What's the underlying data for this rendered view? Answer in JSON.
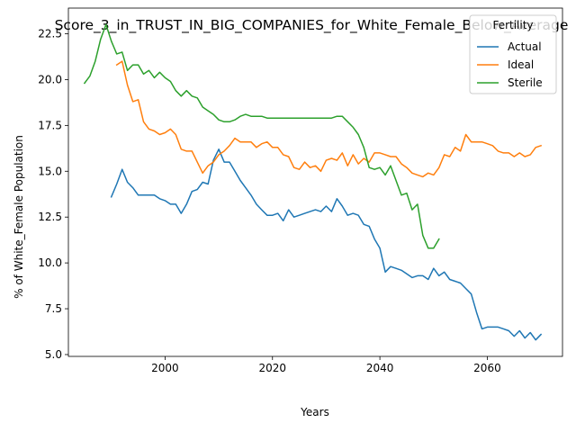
{
  "chart_data": {
    "type": "line",
    "title": "Score_3_in_TRUST_IN_BIG_COMPANIES_for_White_Female_Below_Average",
    "xlabel": "Years",
    "ylabel": "% of White_Female Population",
    "xlim": [
      1982,
      2074
    ],
    "ylim": [
      4.9,
      23.9
    ],
    "xticks": [
      2000,
      2020,
      2040,
      2060
    ],
    "yticks": [
      5.0,
      7.5,
      10.0,
      12.5,
      15.0,
      17.5,
      20.0,
      22.5
    ],
    "legend": {
      "title": "Fertility",
      "placement": "top-right"
    },
    "grid": false,
    "series": [
      {
        "name": "Actual",
        "color": "#1f77b4",
        "x": [
          1990,
          1991,
          1992,
          1993,
          1994,
          1995,
          1996,
          1997,
          1998,
          1999,
          2000,
          2001,
          2002,
          2003,
          2004,
          2005,
          2006,
          2007,
          2008,
          2009,
          2010,
          2011,
          2012,
          2013,
          2014,
          2015,
          2016,
          2017,
          2018,
          2019,
          2020,
          2021,
          2022,
          2023,
          2024,
          2025,
          2026,
          2027,
          2028,
          2029,
          2030,
          2031,
          2032,
          2033,
          2034,
          2035,
          2036,
          2037,
          2038,
          2039,
          2040,
          2041,
          2042,
          2043,
          2044,
          2045,
          2046,
          2047,
          2048,
          2049,
          2050,
          2051,
          2052,
          2053,
          2054,
          2055,
          2056,
          2057,
          2058,
          2059,
          2060,
          2061,
          2062,
          2063,
          2064,
          2065,
          2066,
          2067,
          2068,
          2069,
          2070
        ],
        "y": [
          13.6,
          14.3,
          15.1,
          14.4,
          14.1,
          13.7,
          13.7,
          13.7,
          13.7,
          13.5,
          13.4,
          13.2,
          13.2,
          12.7,
          13.2,
          13.9,
          14.0,
          14.4,
          14.3,
          15.6,
          16.2,
          15.5,
          15.5,
          15.0,
          14.5,
          14.1,
          13.7,
          13.2,
          12.9,
          12.6,
          12.6,
          12.7,
          12.3,
          12.9,
          12.5,
          12.6,
          12.7,
          12.8,
          12.9,
          12.8,
          13.1,
          12.8,
          13.5,
          13.1,
          12.6,
          12.7,
          12.6,
          12.1,
          12.0,
          11.3,
          10.8,
          9.5,
          9.8,
          9.7,
          9.6,
          9.4,
          9.2,
          9.3,
          9.3,
          9.1,
          9.7,
          9.3,
          9.5,
          9.1,
          9.0,
          8.9,
          8.6,
          8.3,
          7.3,
          6.4,
          6.5,
          6.5,
          6.5,
          6.4,
          6.3,
          6.0,
          6.3,
          5.9,
          6.2,
          5.8,
          6.1
        ]
      },
      {
        "name": "Ideal",
        "color": "#ff7f0e",
        "x": [
          1991,
          1992,
          1993,
          1994,
          1995,
          1996,
          1997,
          1998,
          1999,
          2000,
          2001,
          2002,
          2003,
          2004,
          2005,
          2006,
          2007,
          2008,
          2009,
          2010,
          2011,
          2012,
          2013,
          2014,
          2015,
          2016,
          2017,
          2018,
          2019,
          2020,
          2021,
          2022,
          2023,
          2024,
          2025,
          2026,
          2027,
          2028,
          2029,
          2030,
          2031,
          2032,
          2033,
          2034,
          2035,
          2036,
          2037,
          2038,
          2039,
          2040,
          2041,
          2042,
          2043,
          2044,
          2045,
          2046,
          2047,
          2048,
          2049,
          2050,
          2051,
          2052,
          2053,
          2054,
          2055,
          2056,
          2057,
          2058,
          2059,
          2060,
          2061,
          2062,
          2063,
          2064,
          2065,
          2066,
          2067,
          2068,
          2069,
          2070
        ],
        "y": [
          20.8,
          21.0,
          19.7,
          18.8,
          18.9,
          17.7,
          17.3,
          17.2,
          17.0,
          17.1,
          17.3,
          17.0,
          16.2,
          16.1,
          16.1,
          15.5,
          14.9,
          15.3,
          15.5,
          15.9,
          16.1,
          16.4,
          16.8,
          16.6,
          16.6,
          16.6,
          16.3,
          16.5,
          16.6,
          16.3,
          16.3,
          15.9,
          15.8,
          15.2,
          15.1,
          15.5,
          15.2,
          15.3,
          15.0,
          15.6,
          15.7,
          15.6,
          16.0,
          15.3,
          15.9,
          15.4,
          15.7,
          15.5,
          16.0,
          16.0,
          15.9,
          15.8,
          15.8,
          15.4,
          15.2,
          14.9,
          14.8,
          14.7,
          14.9,
          14.8,
          15.2,
          15.9,
          15.8,
          16.3,
          16.1,
          17.0,
          16.6,
          16.6,
          16.6,
          16.5,
          16.4,
          16.1,
          16.0,
          16.0,
          15.8,
          16.0,
          15.8,
          15.9,
          16.3,
          16.4
        ]
      },
      {
        "name": "Sterile",
        "color": "#2ca02c",
        "x": [
          1985,
          1986,
          1987,
          1988,
          1989,
          1990,
          1991,
          1992,
          1993,
          1994,
          1995,
          1996,
          1997,
          1998,
          1999,
          2000,
          2001,
          2002,
          2003,
          2004,
          2005,
          2006,
          2007,
          2008,
          2009,
          2010,
          2011,
          2012,
          2013,
          2014,
          2015,
          2016,
          2017,
          2018,
          2019,
          2020,
          2021,
          2022,
          2023,
          2024,
          2025,
          2026,
          2027,
          2028,
          2029,
          2030,
          2031,
          2032,
          2033,
          2034,
          2035,
          2036,
          2037,
          2038,
          2039,
          2040,
          2041,
          2042,
          2043,
          2044,
          2045,
          2046,
          2047,
          2048,
          2049,
          2050,
          2051
        ],
        "y": [
          19.8,
          20.2,
          21.0,
          22.2,
          23.0,
          22.1,
          21.4,
          21.5,
          20.5,
          20.8,
          20.8,
          20.3,
          20.5,
          20.1,
          20.4,
          20.1,
          19.9,
          19.4,
          19.1,
          19.4,
          19.1,
          19.0,
          18.5,
          18.3,
          18.1,
          17.8,
          17.7,
          17.7,
          17.8,
          18.0,
          18.1,
          18.0,
          18.0,
          18.0,
          17.9,
          17.9,
          17.9,
          17.9,
          17.9,
          17.9,
          17.9,
          17.9,
          17.9,
          17.9,
          17.9,
          17.9,
          17.9,
          18.0,
          18.0,
          17.7,
          17.4,
          17.0,
          16.3,
          15.2,
          15.1,
          15.2,
          14.8,
          15.3,
          14.5,
          13.7,
          13.8,
          12.9,
          13.2,
          11.5,
          10.8,
          10.8,
          11.3
        ]
      }
    ]
  }
}
